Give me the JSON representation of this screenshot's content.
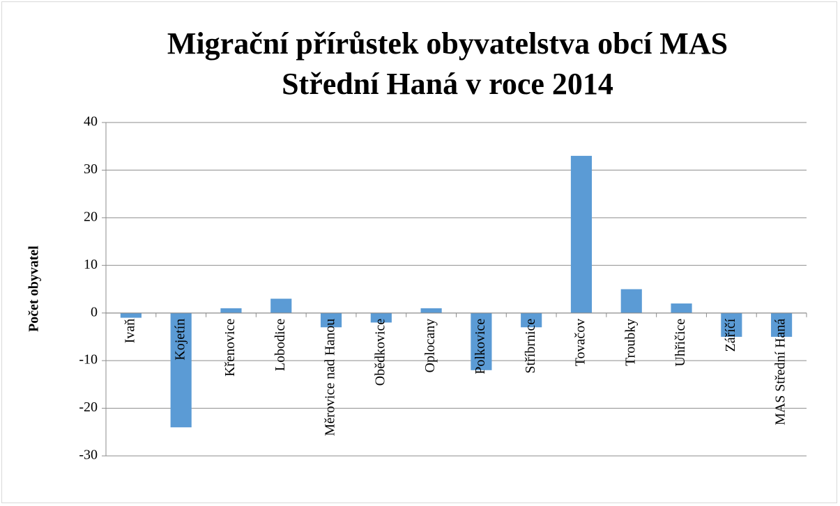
{
  "chart_data": {
    "type": "bar",
    "title": "Migrační přírůstek obyvatelstva obcí MAS Střední Haná v roce 2014",
    "y_label": "Počet obyvatel",
    "categories": [
      "Ivaň",
      "Kojetín",
      "Křenovice",
      "Lobodice",
      "Měrovice nad Hanou",
      "Obědkovice",
      "Oplocany",
      "Polkovice",
      "Stříbrnice",
      "Tovačov",
      "Troubky",
      "Uhřičice",
      "Záříčí",
      "MAS Střední Haná"
    ],
    "values": [
      -1,
      -24,
      1,
      3,
      -3,
      -2,
      1,
      -12,
      -3,
      33,
      5,
      2,
      -5,
      -5
    ],
    "color": "#5b9bd5",
    "ylim": [
      -30,
      40
    ],
    "yticks": [
      -30,
      -20,
      -10,
      0,
      10,
      20,
      30,
      40
    ],
    "grid": true
  }
}
